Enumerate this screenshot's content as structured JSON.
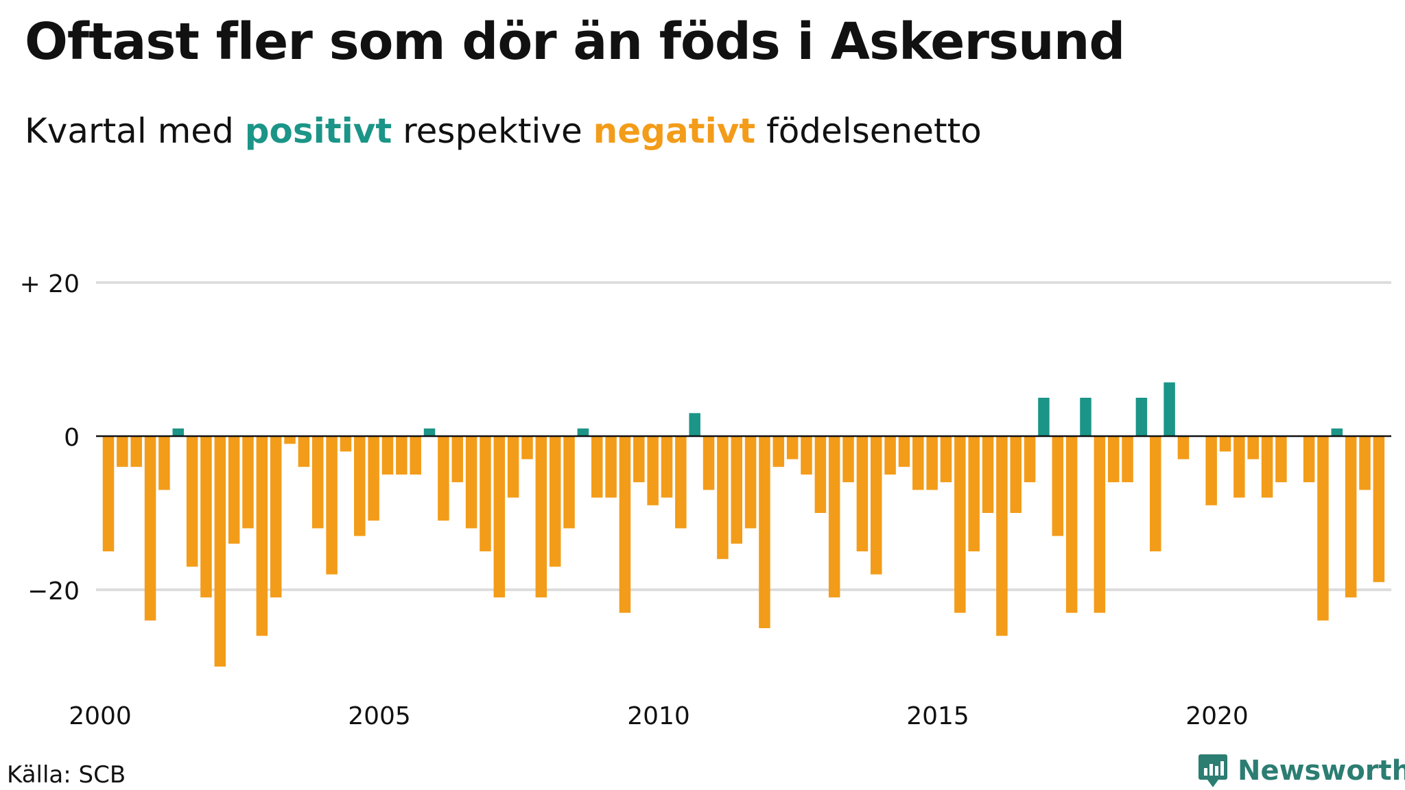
{
  "title": "Oftast fler som dör än föds i Askersund",
  "subtitle": {
    "prefix": "Kvartal med ",
    "positive_word": "positivt",
    "middle": " respektive ",
    "negative_word": "negativt",
    "suffix": " födelsenetto"
  },
  "source": "Källa: SCB",
  "brand": "Newsworthy",
  "colors": {
    "positive": "#1b9587",
    "negative": "#f39c19",
    "grid": "#dddddd",
    "zero": "#111111",
    "brand": "#2c7d72"
  },
  "chart_data": {
    "type": "bar",
    "start": "2000 Q1",
    "frequency": "quarterly",
    "x_ticks": [
      "2000",
      "2005",
      "2010",
      "2015",
      "2020"
    ],
    "y_ticks": [
      {
        "value": 20,
        "label": "+ 20"
      },
      {
        "value": 0,
        "label": "0"
      },
      {
        "value": -20,
        "label": "−20"
      }
    ],
    "ylim": [
      -31,
      20
    ],
    "grid": true,
    "values": [
      -15,
      -4,
      -4,
      -24,
      -7,
      1,
      -17,
      -21,
      -30,
      -14,
      -12,
      -26,
      -21,
      -1,
      -4,
      -12,
      -18,
      -2,
      -13,
      -11,
      -5,
      -5,
      -5,
      1,
      -11,
      -6,
      -12,
      -15,
      -21,
      -8,
      -3,
      -21,
      -17,
      -12,
      1,
      -8,
      -8,
      -23,
      -6,
      -9,
      -8,
      -12,
      3,
      -7,
      -16,
      -14,
      -12,
      -25,
      -4,
      -3,
      -5,
      -10,
      -21,
      -6,
      -15,
      -18,
      -5,
      -4,
      -7,
      -7,
      -6,
      -23,
      -15,
      -10,
      -26,
      -10,
      -6,
      5,
      -13,
      -23,
      5,
      -23,
      -6,
      -6,
      5,
      -15,
      7,
      -3,
      0,
      -9,
      -2,
      -8,
      -3,
      -8,
      -6,
      0,
      -6,
      -24,
      1,
      -21,
      -7,
      -19
    ]
  }
}
